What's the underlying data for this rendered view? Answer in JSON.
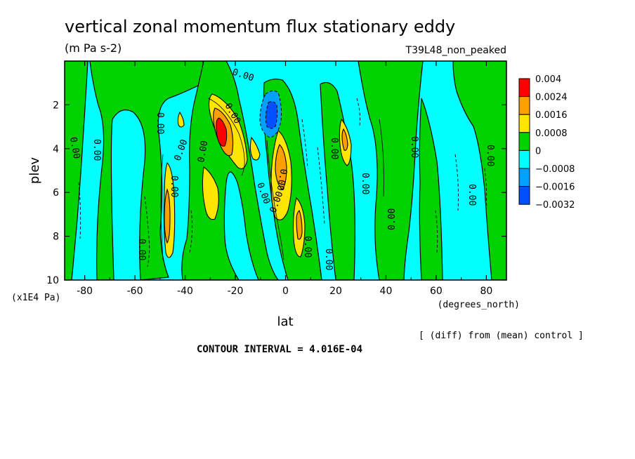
{
  "chart_data": {
    "type": "contour",
    "title": "vertical zonal momentum flux stationary eddy",
    "units": "(m Pa s-2)",
    "experiment": "T39L48_non_peaked",
    "xlabel": "lat",
    "x_units": "(degrees_north)",
    "ylabel": "plev",
    "y_units": "(x1E4 Pa)",
    "xlim": [
      -88,
      88
    ],
    "ylim": [
      10,
      0
    ],
    "x_ticks": [
      "-80",
      "-60",
      "-40",
      "-20",
      "0",
      "20",
      "40",
      "60",
      "80"
    ],
    "y_ticks": [
      "2",
      "4",
      "6",
      "8",
      "10"
    ],
    "contour_interval_text": "CONTOUR INTERVAL = 4.016E-04",
    "diff_note": "[ (diff) from (mean) control ]",
    "contour_label": "0.00",
    "colorbar": {
      "labels": [
        "0.004",
        "0.0024",
        "0.0016",
        "0.0008",
        "0",
        "−0.0008",
        "−0.0016",
        "−0.0032"
      ],
      "colors": [
        "#ff0000",
        "#ffa000",
        "#ffe600",
        "#00d200",
        "#00ffff",
        "#00a0ff",
        "#0050ff"
      ]
    },
    "colors": {
      "background_field": "#00ffff",
      "positive_field": "#00d200"
    },
    "features": [
      {
        "lat": -27,
        "plev": 3.3,
        "value": 0.004,
        "sign": "positive"
      },
      {
        "lat": 0,
        "plev": 4.6,
        "value": 0.0024,
        "sign": "positive"
      },
      {
        "lat": -5,
        "plev": 2.6,
        "value": -0.0016,
        "sign": "negative"
      },
      {
        "lat": -47,
        "plev": 6.8,
        "value": 0.0016,
        "sign": "positive"
      },
      {
        "lat": -30,
        "plev": 5.5,
        "value": 0.0008,
        "sign": "positive"
      },
      {
        "lat": 6,
        "plev": 7.5,
        "value": 0.0016,
        "sign": "positive"
      },
      {
        "lat": 24,
        "plev": 3.7,
        "value": 0.0008,
        "sign": "positive"
      },
      {
        "lat": -10,
        "plev": 4.1,
        "value": 0.0008,
        "sign": "positive"
      },
      {
        "lat": -42,
        "plev": 3.0,
        "value": 0.0008,
        "sign": "positive"
      }
    ]
  }
}
